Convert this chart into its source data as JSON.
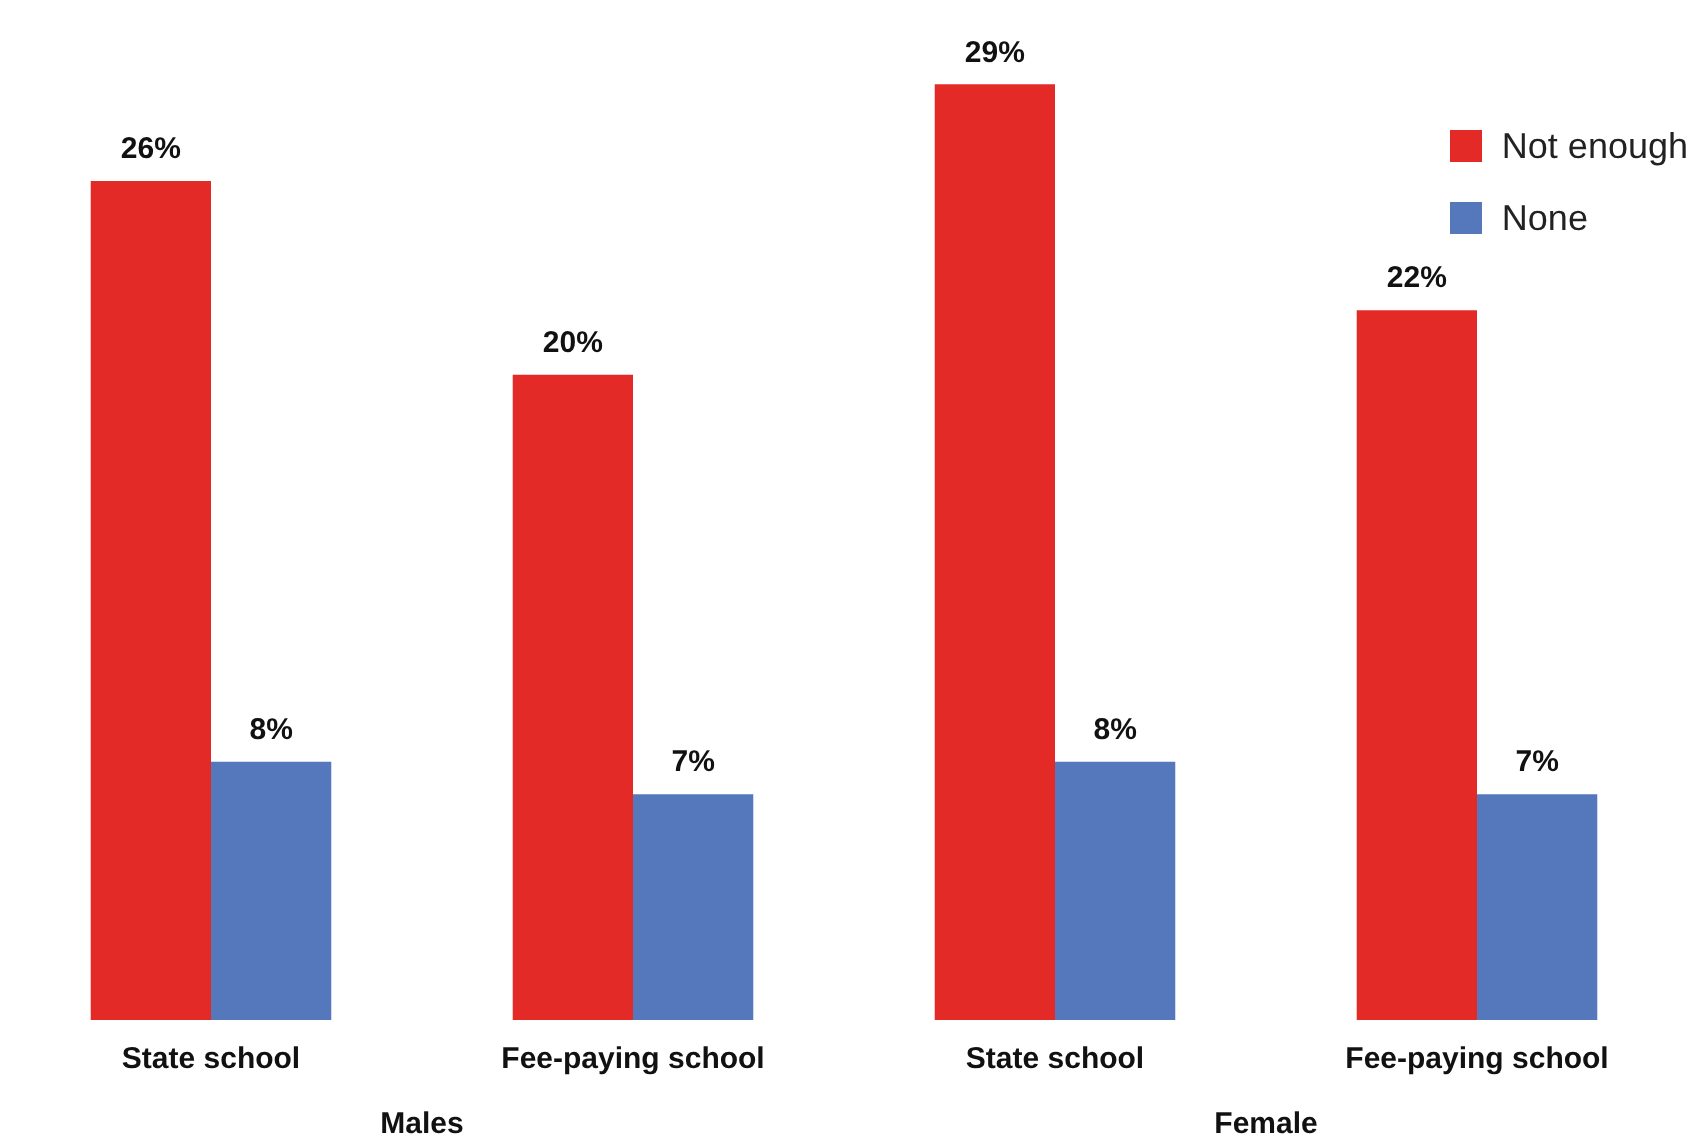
{
  "chart_data": {
    "type": "bar",
    "categories": [
      "State school",
      "Fee-paying school",
      "State school",
      "Fee-paying school"
    ],
    "series": [
      {
        "name": "Not enough",
        "color": "#e42a27",
        "values": [
          26,
          20,
          29,
          22
        ],
        "value_labels": [
          "26%",
          "20%",
          "29%",
          "22%"
        ]
      },
      {
        "name": "None",
        "color": "#5578bd",
        "values": [
          8,
          7,
          8,
          7
        ],
        "value_labels": [
          "8%",
          "7%",
          "8%",
          "7%"
        ]
      }
    ],
    "annotations": [
      "Males",
      "Female"
    ],
    "legend": "top right",
    "grid": false
  }
}
